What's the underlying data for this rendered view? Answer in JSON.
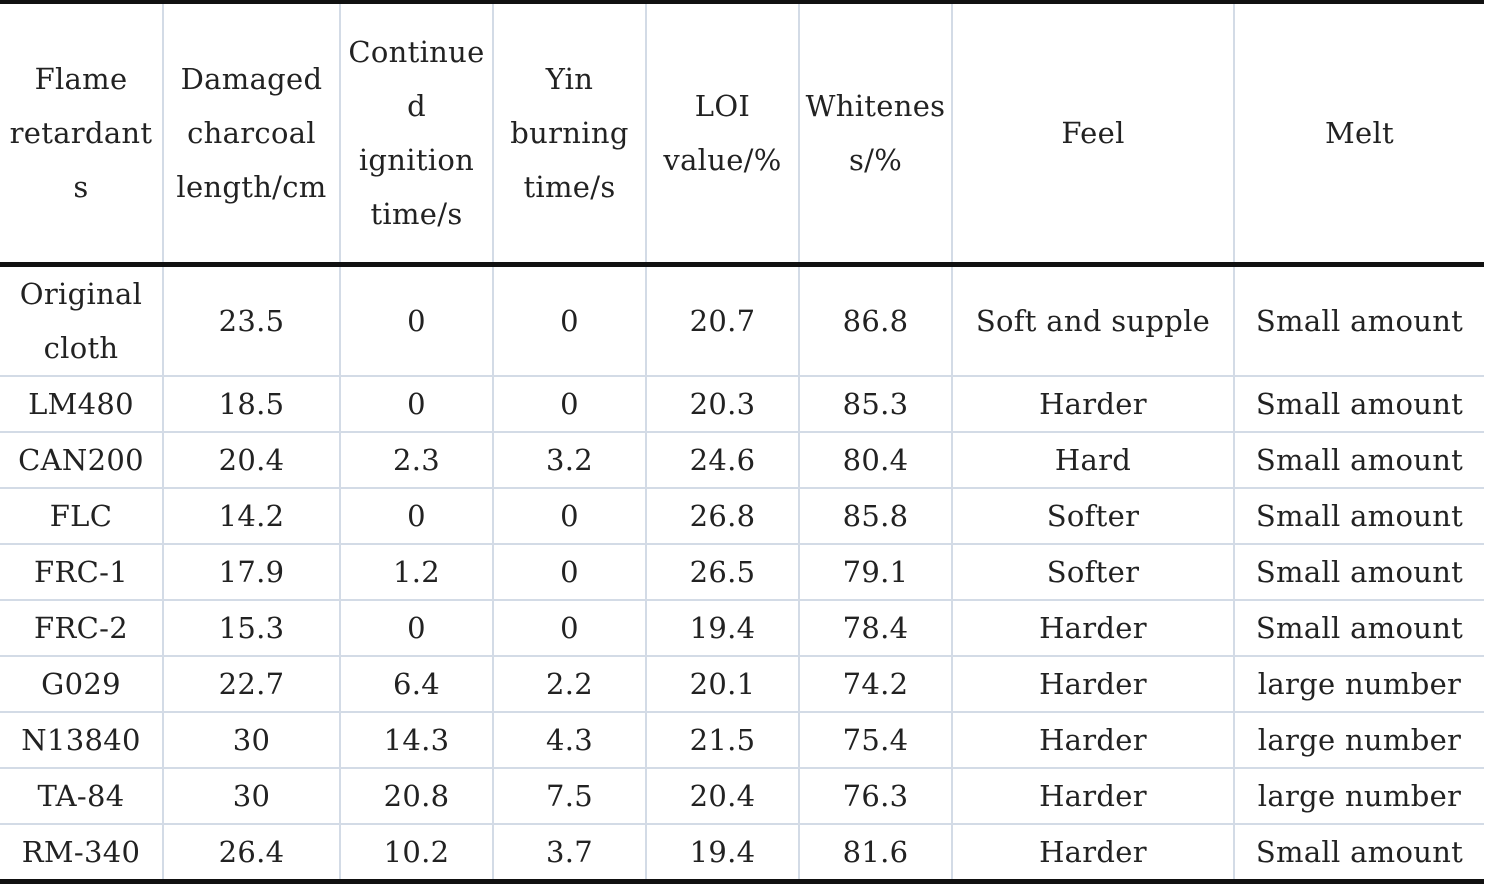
{
  "table": {
    "headers": [
      "Flame retardants",
      "Damaged charcoal length/cm",
      "Continued ignition time/s",
      "Yin burning time/s",
      "LOI value/%",
      "Whiteness/%",
      "Feel",
      "Melt"
    ],
    "header_lines": [
      [
        "Flame",
        "retardant",
        "s"
      ],
      [
        "Damaged",
        "charcoal",
        "length/cm"
      ],
      [
        "Continue",
        "d",
        "ignition",
        "time/s"
      ],
      [
        "Yin",
        "burning",
        "time/s"
      ],
      [
        "LOI",
        "value/%"
      ],
      [
        "Whitenes",
        "s/%"
      ],
      [
        "Feel"
      ],
      [
        "Melt"
      ]
    ],
    "rows": [
      [
        "Original cloth",
        "23.5",
        "0",
        "0",
        "20.7",
        "86.8",
        "Soft and supple",
        "Small amount"
      ],
      [
        "LM480",
        "18.5",
        "0",
        "0",
        "20.3",
        "85.3",
        "Harder",
        "Small amount"
      ],
      [
        "CAN200",
        "20.4",
        "2.3",
        "3.2",
        "24.6",
        "80.4",
        "Hard",
        "Small amount"
      ],
      [
        "FLC",
        "14.2",
        "0",
        "0",
        "26.8",
        "85.8",
        "Softer",
        "Small amount"
      ],
      [
        "FRC-1",
        "17.9",
        "1.2",
        "0",
        "26.5",
        "79.1",
        "Softer",
        "Small amount"
      ],
      [
        "FRC-2",
        "15.3",
        "0",
        "0",
        "19.4",
        "78.4",
        "Harder",
        "Small amount"
      ],
      [
        "G029",
        "22.7",
        "6.4",
        "2.2",
        "20.1",
        "74.2",
        "Harder",
        "large number"
      ],
      [
        "N13840",
        "30",
        "14.3",
        "4.3",
        "21.5",
        "75.4",
        "Harder",
        "large number"
      ],
      [
        "TA-84",
        "30",
        "20.8",
        "7.5",
        "20.4",
        "76.3",
        "Harder",
        "large number"
      ],
      [
        "RM-340",
        "26.4",
        "10.2",
        "3.7",
        "19.4",
        "81.6",
        "Harder",
        "Small amount"
      ]
    ],
    "first_row_lines": [
      "Original",
      "cloth"
    ]
  },
  "colors": {
    "rule": "#111111",
    "grid": "#d3dbe6",
    "text": "#222222"
  }
}
